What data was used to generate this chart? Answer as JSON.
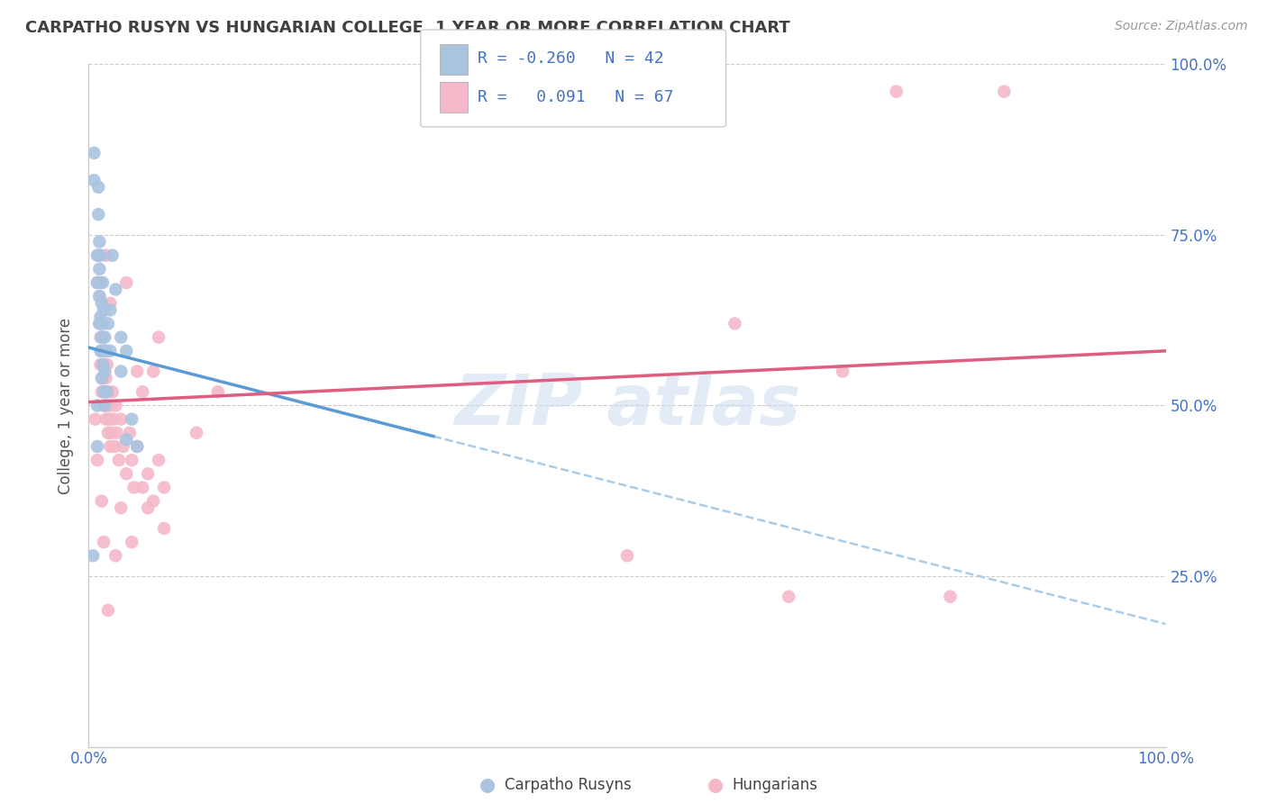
{
  "title": "CARPATHO RUSYN VS HUNGARIAN COLLEGE, 1 YEAR OR MORE CORRELATION CHART",
  "source_text": "Source: ZipAtlas.com",
  "ylabel": "College, 1 year or more",
  "xlim": [
    0.0,
    1.0
  ],
  "ylim": [
    0.0,
    1.0
  ],
  "blue_color": "#aac4e0",
  "pink_color": "#f4b8c8",
  "blue_line_color": "#5b9bd5",
  "pink_line_color": "#e05c80",
  "blue_dashed_color": "#aacce8",
  "scatter_blue": [
    [
      0.008,
      0.68
    ],
    [
      0.008,
      0.72
    ],
    [
      0.009,
      0.78
    ],
    [
      0.009,
      0.82
    ],
    [
      0.01,
      0.62
    ],
    [
      0.01,
      0.66
    ],
    [
      0.01,
      0.7
    ],
    [
      0.01,
      0.74
    ],
    [
      0.011,
      0.58
    ],
    [
      0.011,
      0.63
    ],
    [
      0.011,
      0.68
    ],
    [
      0.011,
      0.72
    ],
    [
      0.012,
      0.54
    ],
    [
      0.012,
      0.6
    ],
    [
      0.012,
      0.65
    ],
    [
      0.013,
      0.56
    ],
    [
      0.013,
      0.62
    ],
    [
      0.013,
      0.68
    ],
    [
      0.014,
      0.52
    ],
    [
      0.014,
      0.58
    ],
    [
      0.014,
      0.64
    ],
    [
      0.015,
      0.5
    ],
    [
      0.015,
      0.55
    ],
    [
      0.015,
      0.6
    ],
    [
      0.016,
      0.58
    ],
    [
      0.017,
      0.52
    ],
    [
      0.02,
      0.64
    ],
    [
      0.02,
      0.58
    ],
    [
      0.022,
      0.72
    ],
    [
      0.025,
      0.67
    ],
    [
      0.03,
      0.6
    ],
    [
      0.03,
      0.55
    ],
    [
      0.035,
      0.58
    ],
    [
      0.04,
      0.48
    ],
    [
      0.045,
      0.44
    ],
    [
      0.005,
      0.87
    ],
    [
      0.005,
      0.83
    ],
    [
      0.008,
      0.5
    ],
    [
      0.008,
      0.44
    ],
    [
      0.004,
      0.28
    ],
    [
      0.035,
      0.45
    ],
    [
      0.018,
      0.62
    ]
  ],
  "scatter_pink": [
    [
      0.008,
      0.68
    ],
    [
      0.009,
      0.72
    ],
    [
      0.01,
      0.62
    ],
    [
      0.01,
      0.66
    ],
    [
      0.011,
      0.56
    ],
    [
      0.011,
      0.6
    ],
    [
      0.012,
      0.52
    ],
    [
      0.012,
      0.58
    ],
    [
      0.013,
      0.54
    ],
    [
      0.013,
      0.6
    ],
    [
      0.014,
      0.5
    ],
    [
      0.014,
      0.56
    ],
    [
      0.015,
      0.52
    ],
    [
      0.015,
      0.58
    ],
    [
      0.016,
      0.48
    ],
    [
      0.016,
      0.54
    ],
    [
      0.017,
      0.5
    ],
    [
      0.017,
      0.56
    ],
    [
      0.018,
      0.46
    ],
    [
      0.018,
      0.52
    ],
    [
      0.019,
      0.48
    ],
    [
      0.02,
      0.44
    ],
    [
      0.02,
      0.5
    ],
    [
      0.021,
      0.46
    ],
    [
      0.022,
      0.52
    ],
    [
      0.023,
      0.48
    ],
    [
      0.024,
      0.44
    ],
    [
      0.025,
      0.5
    ],
    [
      0.026,
      0.46
    ],
    [
      0.028,
      0.42
    ],
    [
      0.03,
      0.48
    ],
    [
      0.032,
      0.44
    ],
    [
      0.035,
      0.4
    ],
    [
      0.038,
      0.46
    ],
    [
      0.04,
      0.42
    ],
    [
      0.042,
      0.38
    ],
    [
      0.045,
      0.44
    ],
    [
      0.05,
      0.38
    ],
    [
      0.055,
      0.4
    ],
    [
      0.06,
      0.36
    ],
    [
      0.065,
      0.42
    ],
    [
      0.07,
      0.38
    ],
    [
      0.016,
      0.72
    ],
    [
      0.02,
      0.65
    ],
    [
      0.06,
      0.55
    ],
    [
      0.065,
      0.6
    ],
    [
      0.4,
      0.96
    ],
    [
      0.75,
      0.96
    ],
    [
      0.85,
      0.96
    ],
    [
      0.5,
      0.28
    ],
    [
      0.6,
      0.62
    ],
    [
      0.7,
      0.55
    ],
    [
      0.006,
      0.48
    ],
    [
      0.008,
      0.42
    ],
    [
      0.012,
      0.36
    ],
    [
      0.014,
      0.3
    ],
    [
      0.018,
      0.2
    ],
    [
      0.025,
      0.28
    ],
    [
      0.03,
      0.35
    ],
    [
      0.04,
      0.3
    ],
    [
      0.055,
      0.35
    ],
    [
      0.07,
      0.32
    ],
    [
      0.8,
      0.22
    ],
    [
      0.65,
      0.22
    ],
    [
      0.1,
      0.46
    ],
    [
      0.12,
      0.52
    ],
    [
      0.045,
      0.55
    ],
    [
      0.05,
      0.52
    ],
    [
      0.035,
      0.68
    ]
  ],
  "blue_trendline": {
    "x_start": 0.0,
    "y_start": 0.585,
    "x_end": 0.32,
    "y_end": 0.455
  },
  "blue_dashed_line": {
    "x_start": 0.32,
    "y_start": 0.455,
    "x_end": 1.0,
    "y_end": 0.18
  },
  "pink_trendline": {
    "x_start": 0.0,
    "y_start": 0.505,
    "x_end": 1.0,
    "y_end": 0.58
  },
  "background_color": "#ffffff",
  "grid_color": "#cccccc",
  "tick_color": "#4472c4",
  "title_color": "#404040",
  "label_color": "#555555"
}
